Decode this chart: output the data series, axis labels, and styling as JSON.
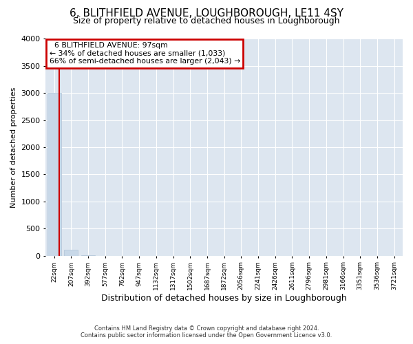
{
  "title": "6, BLITHFIELD AVENUE, LOUGHBOROUGH, LE11 4SY",
  "subtitle": "Size of property relative to detached houses in Loughborough",
  "xlabel": "Distribution of detached houses by size in Loughborough",
  "ylabel": "Number of detached properties",
  "footer_line1": "Contains HM Land Registry data © Crown copyright and database right 2024.",
  "footer_line2": "Contains public sector information licensed under the Open Government Licence v3.0.",
  "categories": [
    "22sqm",
    "207sqm",
    "392sqm",
    "577sqm",
    "762sqm",
    "947sqm",
    "1132sqm",
    "1317sqm",
    "1502sqm",
    "1687sqm",
    "1872sqm",
    "2056sqm",
    "2241sqm",
    "2426sqm",
    "2611sqm",
    "2796sqm",
    "2981sqm",
    "3166sqm",
    "3351sqm",
    "3536sqm",
    "3721sqm"
  ],
  "values": [
    3000,
    110,
    5,
    2,
    1,
    1,
    0,
    0,
    0,
    0,
    0,
    0,
    0,
    0,
    0,
    0,
    0,
    0,
    0,
    0,
    0
  ],
  "bar_color": "#c8d8e8",
  "bar_edge_color": "#b0c4d8",
  "ylim": [
    0,
    4000
  ],
  "yticks": [
    0,
    500,
    1000,
    1500,
    2000,
    2500,
    3000,
    3500,
    4000
  ],
  "property_label": "6 BLITHFIELD AVENUE: 97sqm",
  "pct_smaller": 34,
  "count_smaller": 1033,
  "pct_larger": 66,
  "count_larger": 2043,
  "annotation_box_color": "#cc0000",
  "red_line_bar_index": 0,
  "bg_color": "#dde6f0",
  "grid_color": "#ffffff",
  "title_fontsize": 11,
  "subtitle_fontsize": 9,
  "title_fontweight": "normal"
}
